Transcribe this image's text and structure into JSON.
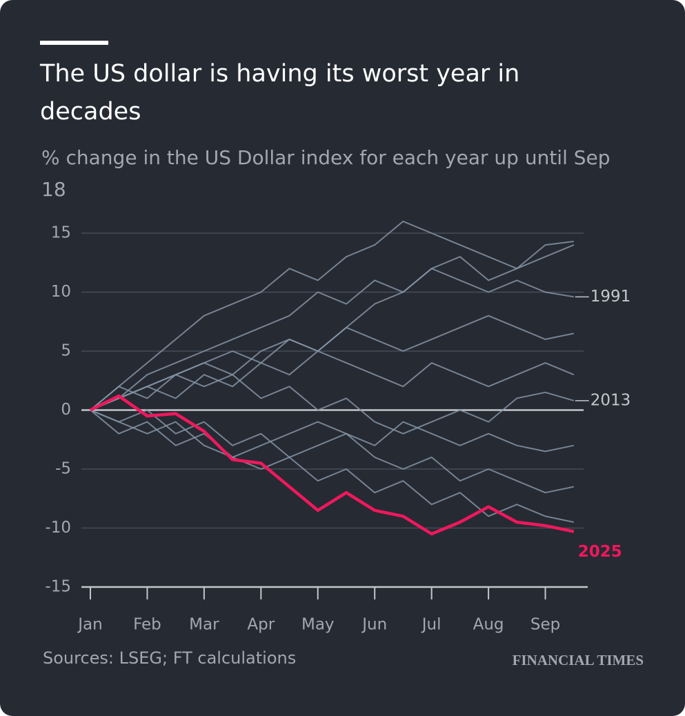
{
  "chart_data": {
    "type": "line",
    "title": "The US dollar is having its worst year in decades",
    "subtitle": "% change in the US Dollar index for each year up until Sep 18",
    "source": "Sources: LSEG; FT calculations",
    "brand": "FINANCIAL TIMES",
    "x": [
      0,
      0.5,
      1,
      1.5,
      2,
      2.5,
      3,
      3.5,
      4,
      4.5,
      5,
      5.5,
      6,
      6.5,
      7,
      7.5,
      8,
      8.5
    ],
    "xlim": [
      0,
      8.6
    ],
    "xticks": [
      {
        "value": 0,
        "label": "Jan"
      },
      {
        "value": 1,
        "label": "Feb"
      },
      {
        "value": 2,
        "label": "Mar"
      },
      {
        "value": 3,
        "label": "Apr"
      },
      {
        "value": 4,
        "label": "May"
      },
      {
        "value": 5,
        "label": "Jun"
      },
      {
        "value": 6,
        "label": "Jul"
      },
      {
        "value": 7,
        "label": "Aug"
      },
      {
        "value": 8,
        "label": "Sep"
      }
    ],
    "ylim": [
      -15,
      15
    ],
    "yticks": [
      -15,
      -10,
      -5,
      0,
      5,
      10,
      15
    ],
    "grid": true,
    "series": [
      {
        "color": "#8594a4",
        "values": [
          0,
          2,
          4,
          6,
          8,
          9,
          10,
          12,
          11,
          13,
          14,
          16,
          15,
          14,
          13,
          12,
          14,
          14.3
        ]
      },
      {
        "color": "#8594a4",
        "values": [
          0,
          1,
          3,
          4,
          5,
          6,
          7,
          8,
          10,
          9,
          11,
          10,
          12,
          13,
          11,
          12,
          13,
          14
        ]
      },
      {
        "color": "#8594a4",
        "values": [
          0,
          -1,
          -2,
          -1,
          -3,
          -4,
          -5,
          -4,
          -6,
          -5,
          -7,
          -6,
          -8,
          -7,
          -9,
          -8,
          -9,
          -9.5
        ]
      },
      {
        "color": "#8594a4",
        "values": [
          0,
          2,
          1,
          3,
          4,
          5,
          4,
          6,
          5,
          7,
          6,
          5,
          6,
          7,
          8,
          7,
          6,
          6.5
        ]
      },
      {
        "color": "#8594a4",
        "values": [
          0,
          -1,
          0,
          -2,
          -1,
          -3,
          -2,
          -4,
          -3,
          -2,
          -4,
          -5,
          -4,
          -6,
          -5,
          -6,
          -7,
          -6.5
        ]
      },
      {
        "color": "#8594a4",
        "values": [
          0,
          1,
          2,
          1,
          3,
          2,
          4,
          3,
          5,
          4,
          3,
          2,
          4,
          3,
          2,
          3,
          4,
          3
        ]
      },
      {
        "color": "#8594a4",
        "values": [
          0,
          -2,
          -1,
          -3,
          -2,
          -4,
          -3,
          -2,
          -1,
          -2,
          -3,
          -1,
          -2,
          -3,
          -2,
          -3,
          -3.5,
          -3
        ]
      },
      {
        "name": "1991",
        "color": "#8594a4",
        "values": [
          0,
          1,
          2,
          3,
          4,
          3,
          5,
          6,
          5,
          7,
          9,
          10,
          12,
          11,
          10,
          11,
          10,
          9.6
        ]
      },
      {
        "name": "2013",
        "color": "#8594a4",
        "values": [
          0,
          1,
          2,
          3,
          2,
          3,
          1,
          2,
          0,
          1,
          -1,
          -2,
          -1,
          0,
          -1,
          1,
          1.5,
          0.8
        ]
      },
      {
        "name": "2025",
        "color": "#f0185c",
        "values": [
          0,
          1.2,
          -0.5,
          -0.3,
          -1.8,
          -4.2,
          -4.5,
          -6.5,
          -8.5,
          -7,
          -8.5,
          -9,
          -10.5,
          -9.5,
          -8.2,
          -9.5,
          -9.8,
          -10.3
        ]
      }
    ]
  }
}
